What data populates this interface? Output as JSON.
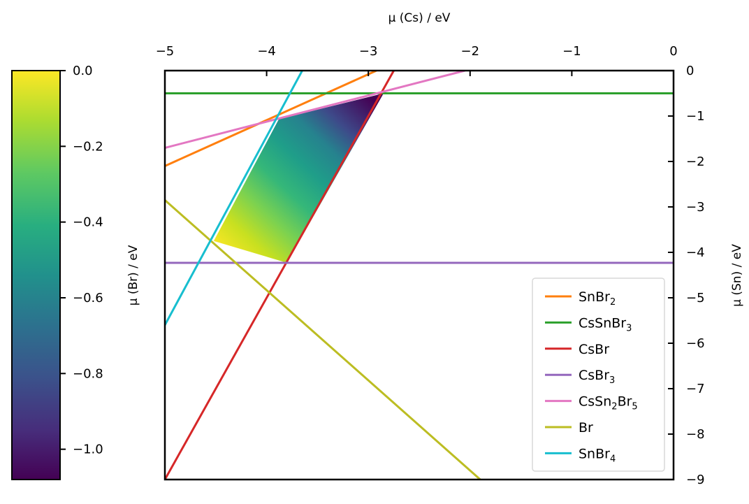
{
  "chart_data": {
    "type": "line",
    "title": "",
    "xlabel": "μ (Cs) / eV",
    "ylabel": "μ (Sn) / eV",
    "colorbar_label": "μ (Br) / eV",
    "xlim": [
      -5,
      0
    ],
    "ylim": [
      -9,
      0
    ],
    "x_ticks": [
      "−5",
      "−4",
      "−3",
      "−2",
      "−1",
      "0"
    ],
    "x_tick_values": [
      -5,
      -4,
      -3,
      -2,
      -1,
      0
    ],
    "y_ticks": [
      "0",
      "−1",
      "−2",
      "−3",
      "−4",
      "−5",
      "−6",
      "−7",
      "−8",
      "−9"
    ],
    "y_tick_values": [
      0,
      -1,
      -2,
      -3,
      -4,
      -5,
      -6,
      -7,
      -8,
      -9
    ],
    "colorbar": {
      "colormap": "viridis",
      "range": [
        -1.08,
        0.0
      ],
      "ticks": [
        "0.0",
        "−0.2",
        "−0.4",
        "−0.6",
        "−0.8",
        "−1.0"
      ],
      "tick_values": [
        0.0,
        -0.2,
        -0.4,
        -0.6,
        -0.8,
        -1.0
      ]
    },
    "legend_position": "lower-right",
    "series": [
      {
        "name": "SnBr",
        "sub": "2",
        "tail": "",
        "color": "#ff7f0e",
        "points": [
          [
            -5,
            -2.1
          ],
          [
            -2.92,
            0
          ]
        ]
      },
      {
        "name": "CsSnBr",
        "sub": "3",
        "tail": "",
        "color": "#2ca02c",
        "points": [
          [
            -5,
            -0.5
          ],
          [
            0,
            -0.5
          ]
        ]
      },
      {
        "name": "CsBr",
        "sub": "",
        "tail": "",
        "color": "#d62728",
        "points": [
          [
            -5,
            -9.0
          ],
          [
            -2.75,
            0
          ]
        ]
      },
      {
        "name": "CsBr",
        "sub": "3",
        "tail": "",
        "color": "#9467bd",
        "points": [
          [
            -5,
            -4.23
          ],
          [
            0,
            -4.23
          ]
        ]
      },
      {
        "name": "CsSn",
        "sub": "2",
        "tail": "Br",
        "sub2": "5",
        "color": "#e377c2",
        "points": [
          [
            -5,
            -1.7
          ],
          [
            -2.05,
            0
          ]
        ]
      },
      {
        "name": "Br",
        "sub": "",
        "tail": "",
        "color": "#bcbd22",
        "points": [
          [
            -5,
            -2.85
          ],
          [
            -1.9,
            -9.0
          ]
        ]
      },
      {
        "name": "SnBr",
        "sub": "4",
        "tail": "",
        "color": "#17becf",
        "points": [
          [
            -5,
            -5.6
          ],
          [
            -3.65,
            0
          ]
        ]
      }
    ],
    "stable_region": {
      "vertices": [
        [
          -3.88,
          -1.07
        ],
        [
          -2.85,
          -0.5
        ],
        [
          -3.8,
          -4.23
        ],
        [
          -4.52,
          -3.75
        ]
      ],
      "mu_br_values": [
        -0.62,
        -1.08,
        -0.25,
        0.0
      ]
    }
  }
}
